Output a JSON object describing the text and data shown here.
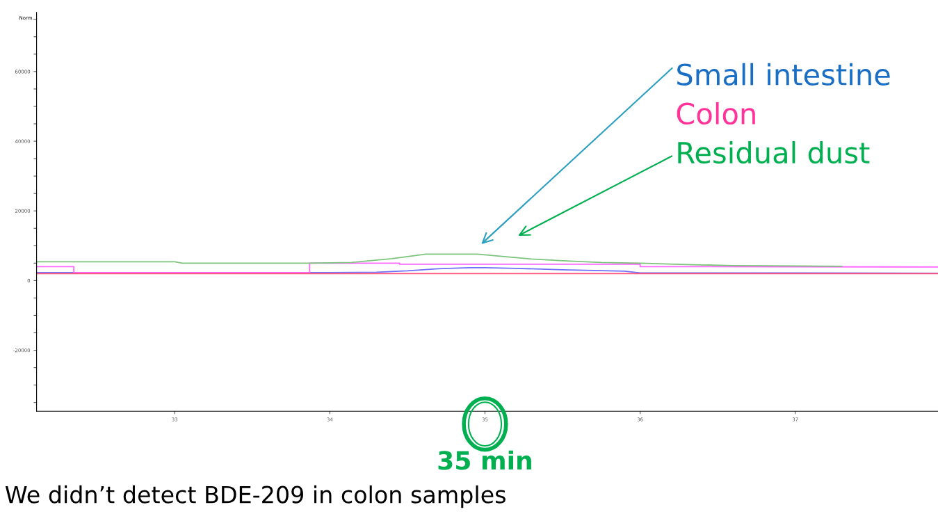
{
  "chart_data": {
    "type": "line",
    "ylabel": "Norm.",
    "xlim": [
      32.11,
      37.92
    ],
    "xticks": [
      33,
      34,
      35,
      36,
      37
    ],
    "ylim": [
      -37500,
      77000
    ],
    "yticks": [
      {
        "value": -35000,
        "label": null
      },
      {
        "value": -30000,
        "label": null
      },
      {
        "value": -25000,
        "label": null
      },
      -20000,
      {
        "value": -15000,
        "label": null
      },
      {
        "value": -10000,
        "label": null
      },
      {
        "value": -5000,
        "label": null
      },
      0,
      {
        "value": 5000,
        "label": null
      },
      {
        "value": 10000,
        "label": null
      },
      {
        "value": 15000,
        "label": null
      },
      20000,
      {
        "value": 25000,
        "label": null
      },
      {
        "value": 30000,
        "label": null
      },
      {
        "value": 35000,
        "label": null
      },
      40000,
      {
        "value": 45000,
        "label": null
      },
      {
        "value": 50000,
        "label": null
      },
      {
        "value": 55000,
        "label": null
      },
      60000,
      {
        "value": 65000,
        "label": null
      },
      {
        "value": 70000,
        "label": null
      },
      {
        "value": 75000,
        "label": null
      }
    ],
    "grid": false,
    "legend": false,
    "marker": "none",
    "line_style": "solid",
    "series": [
      {
        "color": "#6f6fff",
        "x": [
          32.11,
          34.0,
          34.3,
          34.5,
          34.7,
          34.9,
          35.0,
          35.2,
          35.5,
          35.9,
          36.0,
          37.0,
          37.92
        ],
        "values": [
          2300,
          2300,
          2400,
          2800,
          3400,
          3700,
          3700,
          3500,
          3100,
          2700,
          2200,
          2200,
          2100
        ]
      },
      {
        "color": "#ff66ff",
        "x": [
          32.11,
          32.35,
          32.35,
          33.87,
          33.87,
          34.45,
          34.45,
          36.0,
          36.0,
          37.92
        ],
        "values": [
          4000,
          4000,
          2300,
          2300,
          5000,
          5000,
          4700,
          4700,
          4000,
          3900
        ]
      },
      {
        "color": "#7cc47c",
        "x": [
          32.11,
          33.0,
          33.05,
          33.87,
          34.14,
          34.4,
          34.62,
          34.95,
          35.3,
          35.5,
          35.75,
          36.0,
          36.3,
          36.6,
          37.0,
          37.3
        ],
        "values": [
          5400,
          5400,
          5000,
          5000,
          5200,
          6300,
          7600,
          7600,
          6200,
          5700,
          5200,
          5000,
          4600,
          4300,
          4200,
          4100
        ]
      },
      {
        "color": "#ff5577",
        "x": [
          32.11,
          37.92
        ],
        "values": [
          2000,
          2000
        ]
      }
    ],
    "annotations": [
      "Small intestine",
      "Colon",
      "Residual dust",
      "35 min",
      "We didn’t detect BDE-209 in colon samples"
    ]
  }
}
